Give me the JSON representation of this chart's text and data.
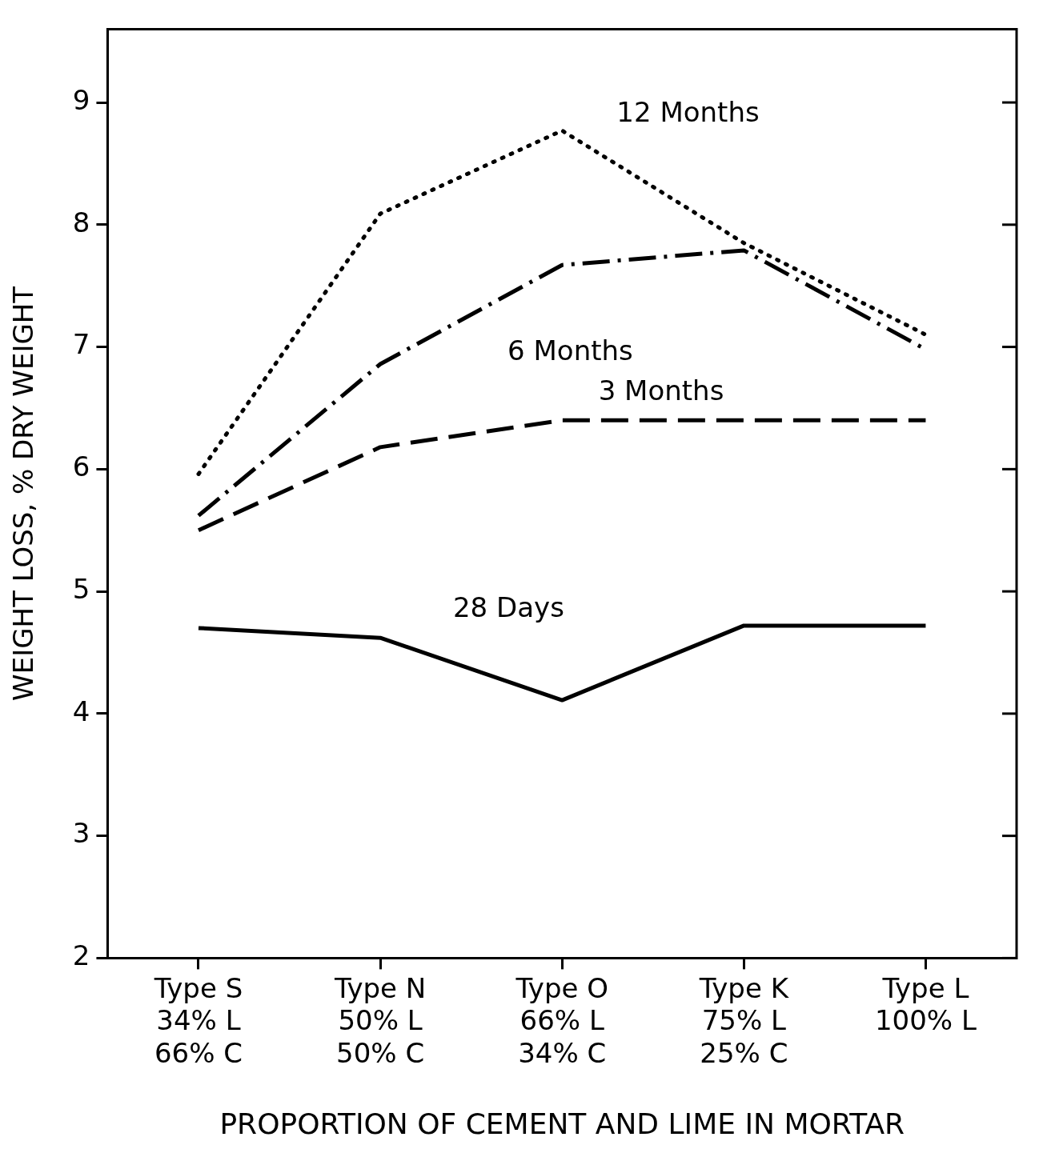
{
  "chart_data": {
    "type": "line",
    "xlabel": "PROPORTION OF CEMENT AND LIME IN MORTAR",
    "ylabel": "WEIGHT LOSS, % DRY WEIGHT",
    "categories": [
      "Type S\n34% L\n66% C",
      "Type N\n50% L\n50% C",
      "Type O\n66% L\n34% C",
      "Type K\n75% L\n25% C",
      "Type L\n100% L"
    ],
    "ylim": [
      2,
      9.6
    ],
    "yticks": [
      2,
      3,
      4,
      5,
      6,
      7,
      8,
      9
    ],
    "grid": false,
    "legend": false,
    "marker": "none",
    "series": [
      {
        "name": "12 Months",
        "color": "#000000",
        "line_style": "dotted",
        "values": [
          5.96,
          8.09,
          8.77,
          7.85,
          7.1
        ]
      },
      {
        "name": "6 Months",
        "color": "#000000",
        "line_style": "dashdot",
        "values": [
          5.62,
          6.86,
          7.67,
          7.79,
          6.98
        ]
      },
      {
        "name": "3 Months",
        "color": "#000000",
        "line_style": "dashed",
        "values": [
          5.5,
          6.18,
          6.4,
          6.4,
          6.4
        ]
      },
      {
        "name": "28 Days",
        "color": "#000000",
        "line_style": "solid",
        "values": [
          4.7,
          4.62,
          4.11,
          4.72,
          4.72
        ]
      }
    ]
  }
}
